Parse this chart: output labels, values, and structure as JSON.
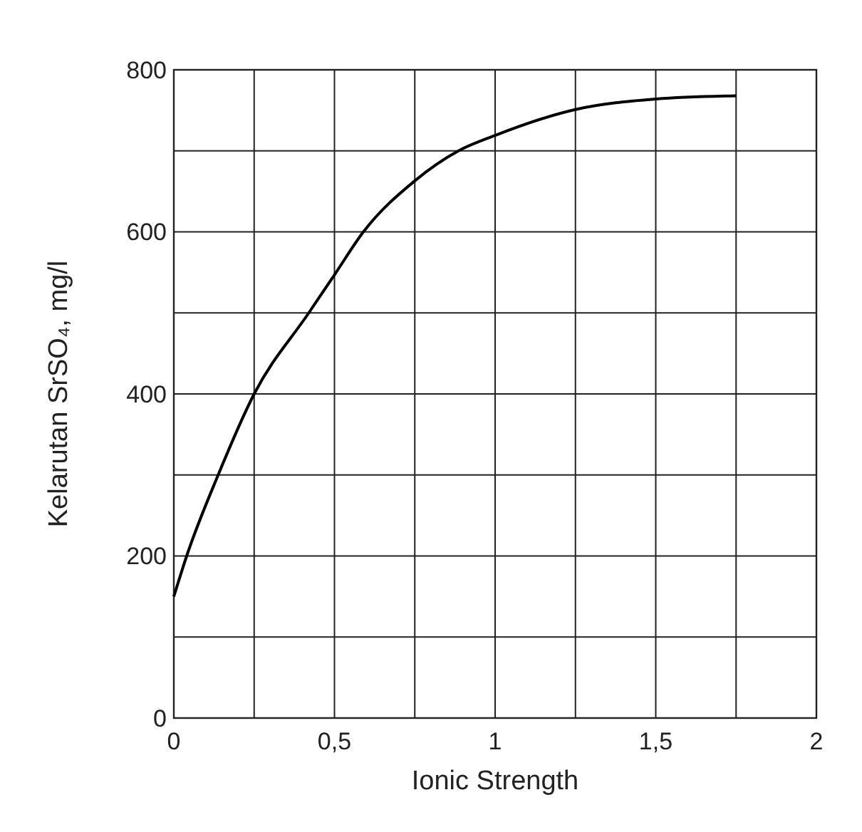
{
  "chart_data": {
    "type": "line",
    "xlabel": "Ionic Strength",
    "ylabel": "Kelarutan SrSO₄, mg/l",
    "x": [
      0,
      0.04,
      0.138,
      0.25,
      0.42,
      0.5,
      0.59,
      0.75,
      0.886,
      1,
      1.25,
      1.5,
      1.75
    ],
    "series": [
      {
        "color": "#000000",
        "values": [
          150,
          200,
          300,
          400,
          500,
          547,
          600,
          663,
          700,
          719,
          751,
          764,
          768
        ]
      }
    ],
    "xlim": [
      0,
      2
    ],
    "ylim": [
      0,
      800
    ],
    "xticks": [
      0,
      {
        "value": 0.25,
        "label": null
      },
      {
        "value": 0.5,
        "label": "0,5"
      },
      {
        "value": 0.75,
        "label": null
      },
      1,
      {
        "value": 1.25,
        "label": null
      },
      {
        "value": 1.5,
        "label": "1,5"
      },
      {
        "value": 1.75,
        "label": null
      },
      2
    ],
    "yticks": [
      0,
      {
        "value": 100,
        "label": null
      },
      200,
      {
        "value": 300,
        "label": null
      },
      400,
      {
        "value": 500,
        "label": null
      },
      600,
      {
        "value": 700,
        "label": null
      },
      800
    ],
    "grid": true,
    "marker": "none",
    "line_style": "solid"
  }
}
